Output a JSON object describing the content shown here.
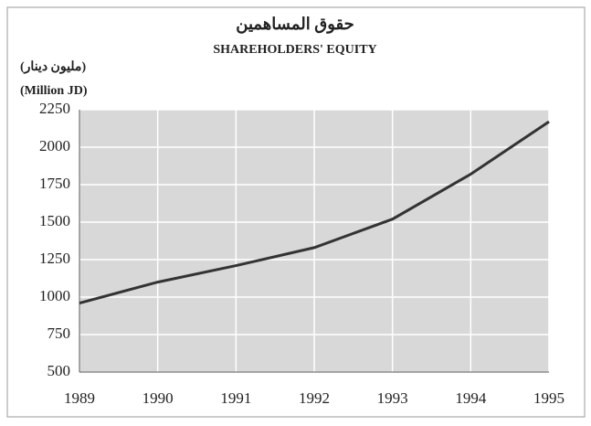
{
  "chart_data": {
    "type": "line",
    "title": "حقوق المساهمين",
    "subtitle": "SHAREHOLDERS' EQUITY",
    "y_label": "(مليون دينار)",
    "y_label_2": "(Million JD)",
    "x": [
      1989,
      1990,
      1991,
      1992,
      1993,
      1994,
      1995
    ],
    "values": [
      960,
      1100,
      1210,
      1330,
      1520,
      1820,
      2170
    ],
    "color": "#333333",
    "xlim": [
      1989,
      1995
    ],
    "xticks": [
      1989,
      1990,
      1991,
      1992,
      1993,
      1994,
      1995
    ],
    "ylim": [
      500,
      2250
    ],
    "yticks": [
      500,
      750,
      1000,
      1250,
      1500,
      1750,
      2000,
      2250
    ],
    "grid": true
  }
}
